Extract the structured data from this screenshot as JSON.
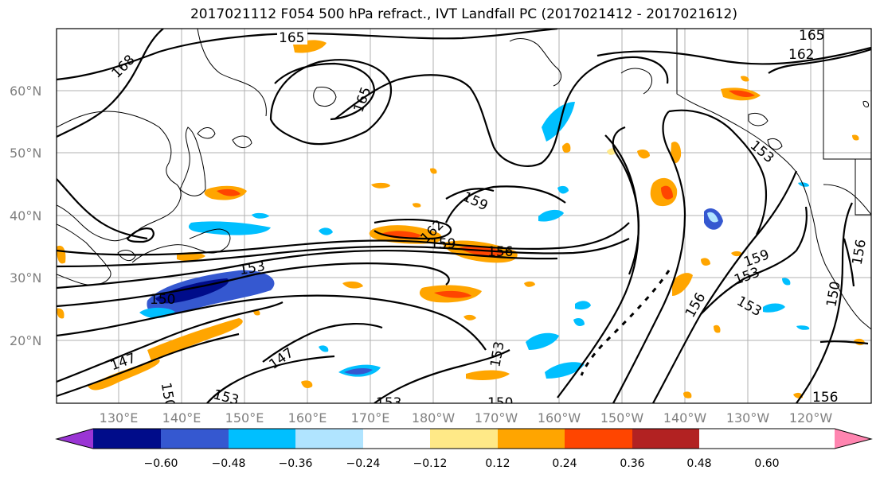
{
  "title": "2017021112 F054 500 hPa refract., IVT Landfall PC (2017021412 - 2017021612)",
  "lat_labels": [
    "60°N",
    "50°N",
    "40°N",
    "30°N",
    "20°N"
  ],
  "lon_labels": [
    "130°E",
    "140°E",
    "150°E",
    "160°E",
    "170°E",
    "180°W",
    "170°W",
    "160°W",
    "150°W",
    "140°W",
    "130°W",
    "120°W"
  ],
  "contour_labels": [
    "165",
    "168",
    "165",
    "165",
    "162",
    "159",
    "162",
    "159",
    "156",
    "153",
    "150",
    "153",
    "159",
    "156",
    "153",
    "150",
    "147",
    "147",
    "153",
    "153",
    "150",
    "150",
    "156",
    "153"
  ],
  "colorbar": {
    "ticks": [
      "−0.60",
      "−0.48",
      "−0.36",
      "−0.24",
      "−0.12",
      "0.12",
      "0.24",
      "0.36",
      "0.48",
      "0.60"
    ],
    "colors": [
      "#9a35d4",
      "#000c8a",
      "#3558d0",
      "#00bfff",
      "#b0e4ff",
      "#ffffff",
      "#ffe987",
      "#ffa500",
      "#ff4500",
      "#b22222",
      "#ff85b0"
    ]
  }
}
